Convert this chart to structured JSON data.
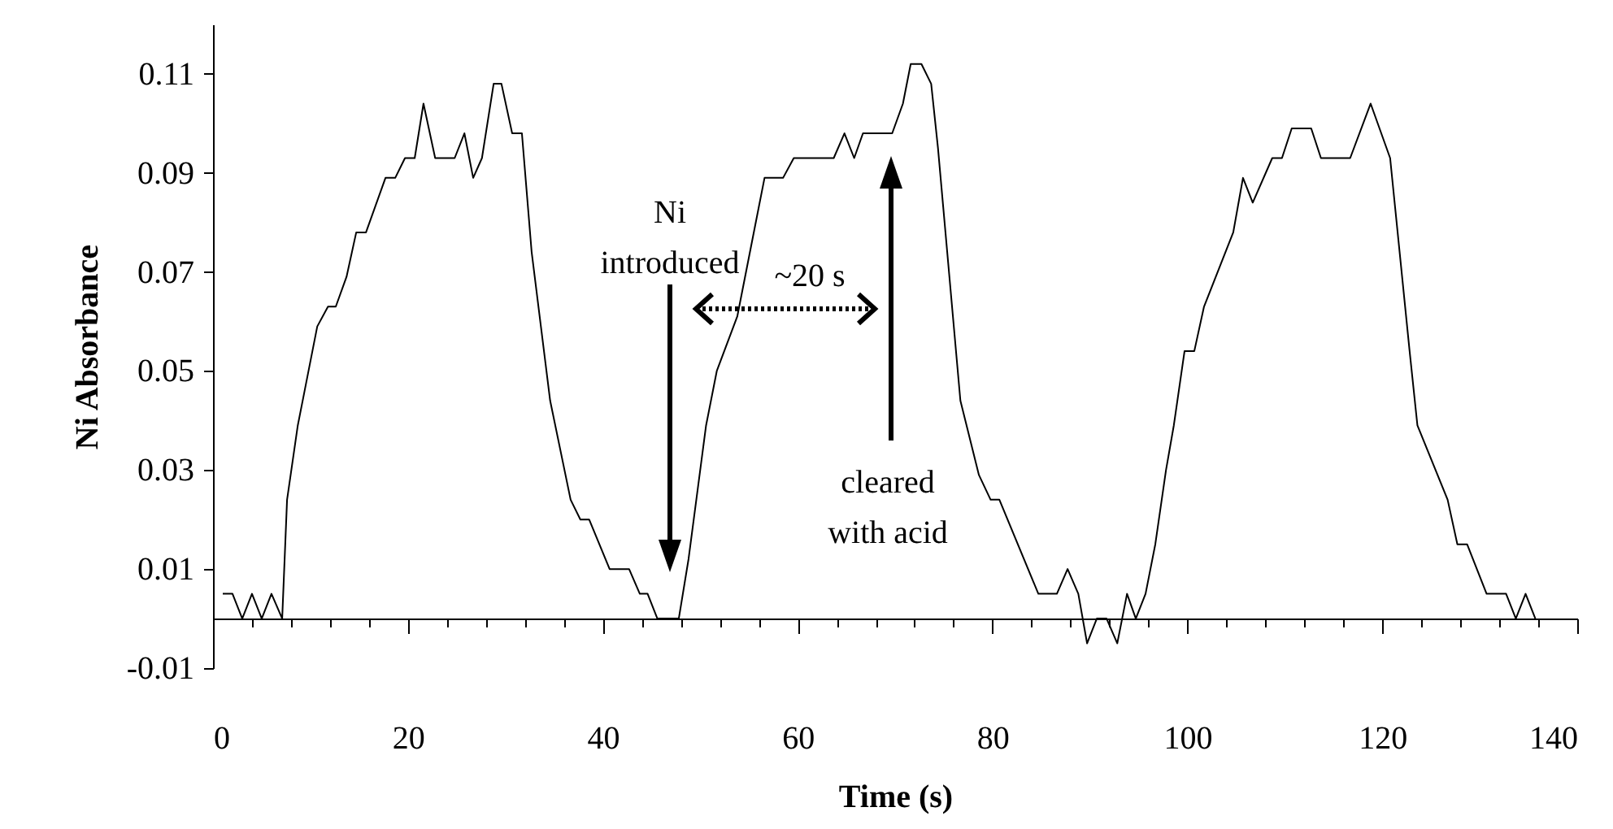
{
  "chart_data": {
    "type": "line",
    "xlabel": "Time (s)",
    "ylabel": "Ni Absorbance",
    "x": [
      1,
      2,
      3,
      4,
      5,
      6,
      7.1,
      7.6,
      8.7,
      9.4,
      10.7,
      11.8,
      12.6,
      13.7,
      14.7,
      15.7,
      17.7,
      18.7,
      19.7,
      20.7,
      21.6,
      22.8,
      24.8,
      25.8,
      26.7,
      27.6,
      28.8,
      29.6,
      30.7,
      31.7,
      32.7,
      34.6,
      36.7,
      37.7,
      38.6,
      40.7,
      42.7,
      43.8,
      44.6,
      45.6,
      47.8,
      48.8,
      50.6,
      51.7,
      53.8,
      55.6,
      56.6,
      58.5,
      59.6,
      63.7,
      64.8,
      65.8,
      66.7,
      69.7,
      70.8,
      71.6,
      72.7,
      73.7,
      74.4,
      76.7,
      78.6,
      79.8,
      80.7,
      84.7,
      86.6,
      87.7,
      88.8,
      89.7,
      90.7,
      91.7,
      92.8,
      93.8,
      94.7,
      95.7,
      96.7,
      97.8,
      98.6,
      99.7,
      100.7,
      101.7,
      104.7,
      105.7,
      106.7,
      108.7,
      109.7,
      110.7,
      112.7,
      113.7,
      116.7,
      118.8,
      120.8,
      122.8,
      123.6,
      126.7,
      127.7,
      128.7,
      130.7,
      132.7,
      133.7,
      134.7,
      135.7
    ],
    "series": [
      {
        "color": "#000000",
        "values": [
          0.005,
          0.005,
          0,
          0.005,
          0,
          0.005,
          0,
          0.024,
          0.039,
          0.046,
          0.059,
          0.063,
          0.063,
          0.069,
          0.078,
          0.078,
          0.089,
          0.089,
          0.093,
          0.093,
          0.104,
          0.093,
          0.093,
          0.098,
          0.089,
          0.093,
          0.108,
          0.108,
          0.098,
          0.098,
          0.074,
          0.044,
          0.024,
          0.02,
          0.02,
          0.01,
          0.01,
          0.005,
          0.005,
          0,
          0,
          0.012,
          0.039,
          0.05,
          0.061,
          0.079,
          0.089,
          0.089,
          0.093,
          0.093,
          0.098,
          0.093,
          0.098,
          0.098,
          0.104,
          0.112,
          0.112,
          0.108,
          0.095,
          0.044,
          0.029,
          0.024,
          0.024,
          0.005,
          0.005,
          0.01,
          0.005,
          -0.005,
          0,
          0,
          -0.005,
          0.005,
          0,
          0.005,
          0.015,
          0.03,
          0.039,
          0.054,
          0.054,
          0.063,
          0.078,
          0.089,
          0.084,
          0.093,
          0.093,
          0.099,
          0.099,
          0.093,
          0.093,
          0.104,
          0.093,
          0.054,
          0.039,
          0.024,
          0.015,
          0.015,
          0.005,
          0.005,
          0,
          0.005,
          0
        ]
      }
    ],
    "xlim": [
      0,
      140
    ],
    "xticks": [
      0,
      {
        "value": 4,
        "label": null
      },
      {
        "value": 8,
        "label": null
      },
      {
        "value": 12,
        "label": null
      },
      {
        "value": 16,
        "label": null
      },
      20,
      {
        "value": 24,
        "label": null
      },
      {
        "value": 28,
        "label": null
      },
      {
        "value": 32,
        "label": null
      },
      {
        "value": 36,
        "label": null
      },
      40,
      {
        "value": 44,
        "label": null
      },
      {
        "value": 48,
        "label": null
      },
      {
        "value": 52,
        "label": null
      },
      {
        "value": 56,
        "label": null
      },
      60,
      {
        "value": 64,
        "label": null
      },
      {
        "value": 68,
        "label": null
      },
      {
        "value": 72,
        "label": null
      },
      {
        "value": 76,
        "label": null
      },
      80,
      {
        "value": 84,
        "label": null
      },
      {
        "value": 88,
        "label": null
      },
      {
        "value": 92,
        "label": null
      },
      {
        "value": 96,
        "label": null
      },
      100,
      {
        "value": 104,
        "label": null
      },
      {
        "value": 108,
        "label": null
      },
      {
        "value": 112,
        "label": null
      },
      {
        "value": 116,
        "label": null
      },
      120,
      {
        "value": 124,
        "label": null
      },
      {
        "value": 128,
        "label": null
      },
      {
        "value": 132,
        "label": null
      },
      {
        "value": 136,
        "label": null
      },
      140
    ],
    "ylim": [
      -0.01,
      0.12
    ],
    "yticks": [
      -0.01,
      0.01,
      0.03,
      0.05,
      0.07,
      0.09,
      0.11
    ],
    "annotations": [
      "Ni introduced",
      "~20 s",
      "cleared with acid"
    ]
  }
}
